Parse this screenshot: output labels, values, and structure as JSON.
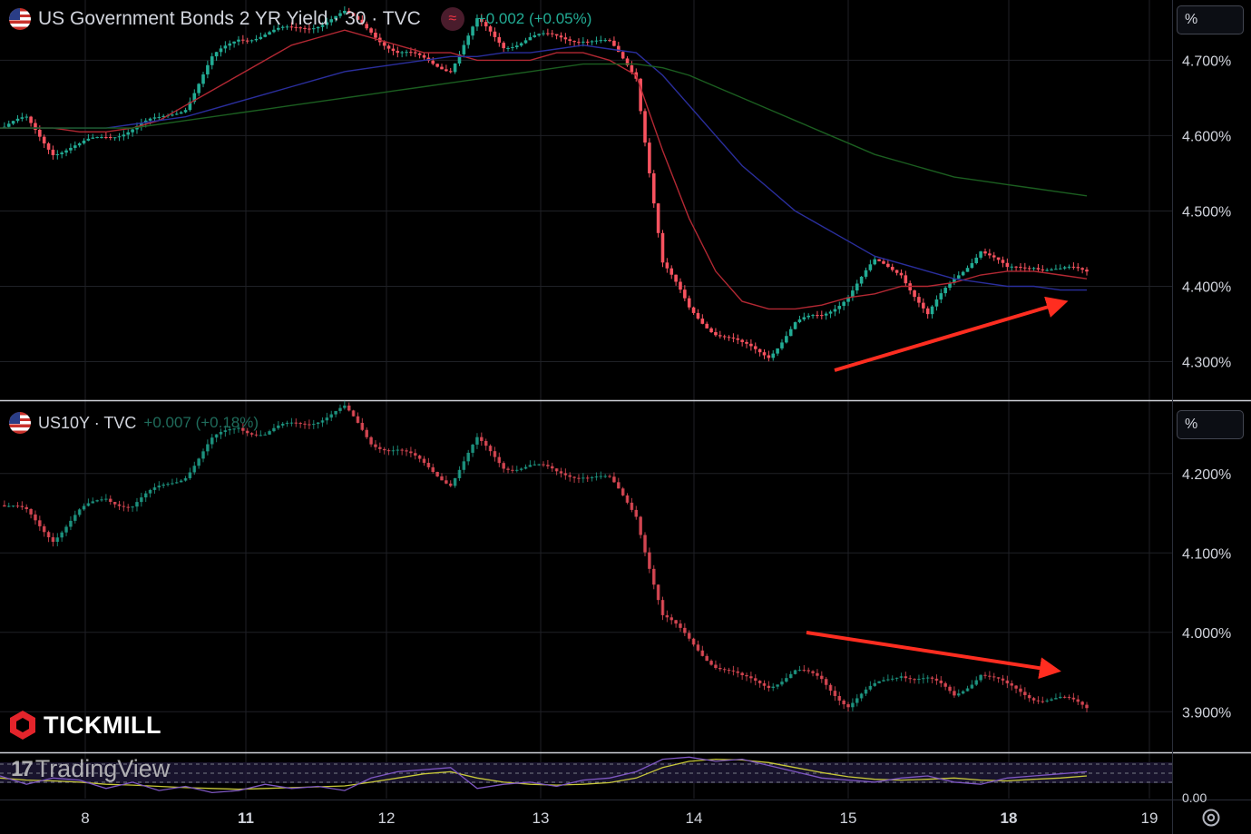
{
  "top_panel": {
    "symbol": "US Government Bonds 2 YR Yield · 30 · TVC",
    "change": "+0.002 (+0.05%)",
    "scale_button": "%",
    "indicator_icon": "≈"
  },
  "bottom_panel": {
    "symbol": "US10Y · TVC",
    "change": "+0.007 (+0.18%)",
    "scale_button": "%"
  },
  "rsi_panel": {
    "tick": "0.00"
  },
  "branding": {
    "broker": "TICKMILL",
    "platform": "TradingView"
  },
  "colors": {
    "up": "#22ab94",
    "down": "#f7525f",
    "ma_fast": "#b22833",
    "ma_mid": "#2a2e9c",
    "ma_slow": "#1b5e20",
    "arrow": "#ff2d20",
    "rsi_main": "#c8c83a",
    "rsi_signal": "#7e57c2"
  },
  "chart_data": [
    {
      "type": "line",
      "title": "US Government Bonds 2 YR Yield · 30 · TVC",
      "ylim": [
        4.25,
        4.78
      ],
      "y_ticks": [
        "4.700%",
        "4.600%",
        "4.500%",
        "4.400%",
        "4.300%"
      ],
      "x_ticks": [
        "8",
        "11",
        "12",
        "13",
        "14",
        "15",
        "18",
        "19"
      ],
      "series": [
        {
          "values": [
            4.61,
            4.62,
            4.58,
            4.585,
            4.6,
            4.61,
            4.62,
            4.64,
            4.7,
            4.73,
            4.735,
            4.74,
            4.75,
            4.76,
            4.74,
            4.71,
            4.7,
            4.69,
            4.75,
            4.72,
            4.73,
            4.73,
            4.73,
            4.72,
            4.68,
            4.43,
            4.37,
            4.34,
            4.32,
            4.31,
            4.35,
            4.36,
            4.39,
            4.43,
            4.42,
            4.36,
            4.41,
            4.45,
            4.42,
            4.43,
            4.42,
            4.42
          ]
        },
        {
          "values": [
            4.61,
            4.61,
            4.61,
            4.605,
            4.605,
            4.61,
            4.62,
            4.64,
            4.66,
            4.68,
            4.7,
            4.72,
            4.73,
            4.74,
            4.73,
            4.72,
            4.71,
            4.71,
            4.7,
            4.7,
            4.7,
            4.71,
            4.71,
            4.7,
            4.68,
            4.58,
            4.49,
            4.42,
            4.38,
            4.37,
            4.37,
            4.375,
            4.385,
            4.39,
            4.4,
            4.4,
            4.405,
            4.415,
            4.42,
            4.42,
            4.415,
            4.41
          ]
        },
        {
          "values": [
            4.61,
            4.61,
            4.61,
            4.61,
            4.61,
            4.615,
            4.62,
            4.625,
            4.635,
            4.645,
            4.655,
            4.665,
            4.675,
            4.685,
            4.69,
            4.695,
            4.7,
            4.705,
            4.705,
            4.71,
            4.71,
            4.715,
            4.72,
            4.715,
            4.71,
            4.68,
            4.64,
            4.6,
            4.56,
            4.53,
            4.5,
            4.48,
            4.46,
            4.44,
            4.43,
            4.42,
            4.41,
            4.405,
            4.4,
            4.4,
            4.395,
            4.395
          ]
        },
        {
          "values": [
            4.61,
            4.61,
            4.61,
            4.61,
            4.61,
            4.61,
            4.615,
            4.62,
            4.625,
            4.63,
            4.635,
            4.64,
            4.645,
            4.65,
            4.655,
            4.66,
            4.665,
            4.67,
            4.675,
            4.68,
            4.685,
            4.69,
            4.695,
            4.695,
            4.695,
            4.69,
            4.68,
            4.665,
            4.65,
            4.635,
            4.62,
            4.605,
            4.59,
            4.575,
            4.565,
            4.555,
            4.545,
            4.54,
            4.535,
            4.53,
            4.525,
            4.52
          ]
        }
      ]
    },
    {
      "type": "line",
      "title": "US10Y · TVC",
      "ylim": [
        3.85,
        4.29
      ],
      "y_ticks": [
        "4.200%",
        "4.100%",
        "4.000%",
        "3.900%"
      ],
      "series": [
        {
          "values": [
            4.16,
            4.15,
            4.12,
            4.15,
            4.17,
            4.16,
            4.18,
            4.2,
            4.24,
            4.26,
            4.25,
            4.26,
            4.27,
            4.28,
            4.24,
            4.23,
            4.21,
            4.19,
            4.24,
            4.21,
            4.21,
            4.2,
            4.2,
            4.19,
            4.15,
            4.02,
            3.99,
            3.96,
            3.94,
            3.935,
            3.95,
            3.94,
            3.91,
            3.93,
            3.95,
            3.94,
            3.92,
            3.95,
            3.93,
            3.92,
            3.915,
            3.905
          ]
        }
      ]
    },
    {
      "type": "line",
      "title": "",
      "ylim": [
        0,
        1
      ],
      "y_ticks": [
        "0.00"
      ],
      "series": [
        {
          "values": [
            0.55,
            0.6,
            0.62,
            0.65,
            0.7,
            0.72,
            0.75,
            0.78,
            0.8,
            0.82,
            0.8,
            0.78,
            0.76,
            0.74,
            0.65,
            0.55,
            0.45,
            0.4,
            0.55,
            0.65,
            0.7,
            0.72,
            0.7,
            0.66,
            0.55,
            0.3,
            0.15,
            0.1,
            0.12,
            0.18,
            0.3,
            0.42,
            0.52,
            0.58,
            0.6,
            0.58,
            0.55,
            0.6,
            0.62,
            0.58,
            0.55,
            0.5
          ]
        },
        {
          "values": [
            0.5,
            0.7,
            0.55,
            0.6,
            0.8,
            0.65,
            0.85,
            0.75,
            0.9,
            0.85,
            0.7,
            0.8,
            0.75,
            0.85,
            0.55,
            0.4,
            0.35,
            0.3,
            0.8,
            0.7,
            0.65,
            0.75,
            0.6,
            0.55,
            0.4,
            0.1,
            0.05,
            0.15,
            0.1,
            0.25,
            0.4,
            0.55,
            0.6,
            0.65,
            0.55,
            0.5,
            0.65,
            0.7,
            0.55,
            0.5,
            0.45,
            0.4
          ]
        }
      ]
    }
  ]
}
